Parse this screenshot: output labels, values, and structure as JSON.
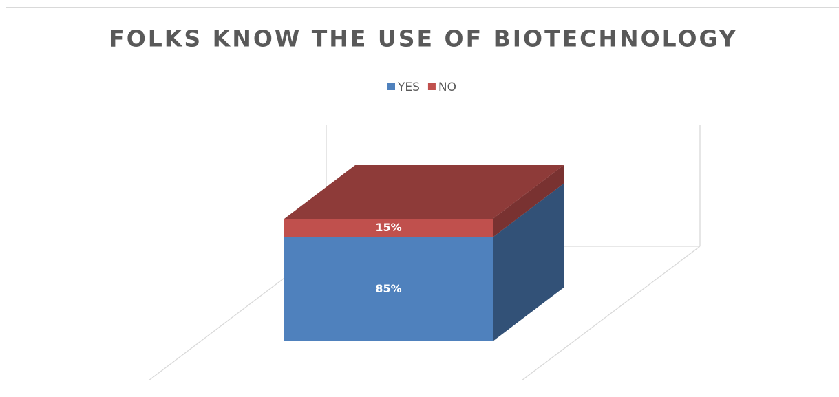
{
  "chart_data": {
    "type": "bar",
    "stacked": true,
    "title": "FOLKS KNOW THE USE OF BIOTECHNOLOGY",
    "categories": [
      null
    ],
    "series": [
      {
        "name": "YES",
        "color": "#4f81bd",
        "values": [
          85
        ],
        "value_labels": [
          "85%"
        ]
      },
      {
        "name": "NO",
        "color": "#c0504d",
        "values": [
          15
        ],
        "value_labels": [
          "15%"
        ]
      }
    ],
    "ylim": [
      0,
      100
    ],
    "legend": "top"
  }
}
